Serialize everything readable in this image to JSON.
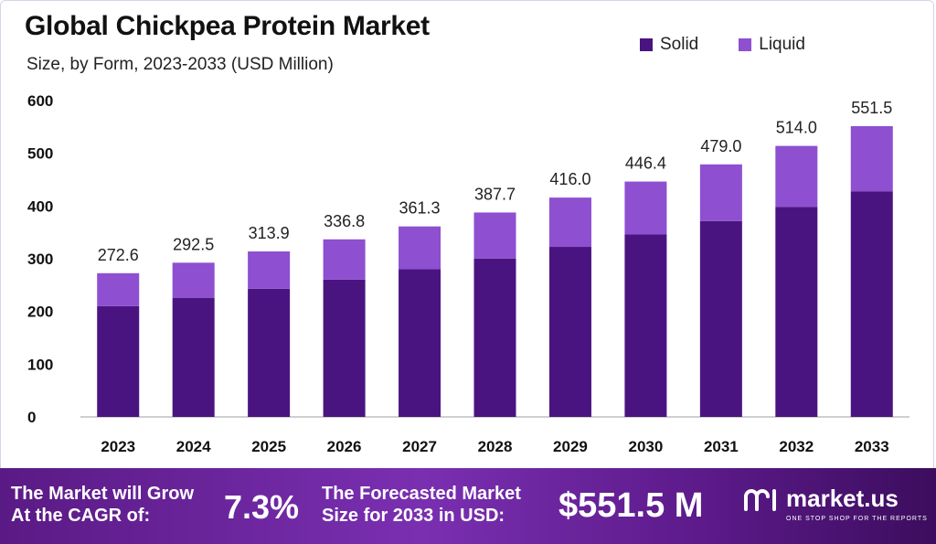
{
  "title": "Global Chickpea Protein Market",
  "subtitle": "Size, by Form, 2023-2033 (USD Million)",
  "colors": {
    "solid": "#4a1480",
    "liquid": "#8e4fd0",
    "axis": "#bfbfbf"
  },
  "chart_data": {
    "type": "bar",
    "stacked": true,
    "categories": [
      "2023",
      "2024",
      "2025",
      "2026",
      "2027",
      "2028",
      "2029",
      "2030",
      "2031",
      "2032",
      "2033"
    ],
    "series": [
      {
        "name": "Solid",
        "values": [
          210.0,
          226.0,
          243.0,
          260.5,
          280.0,
          300.5,
          322.5,
          346.0,
          371.5,
          398.5,
          428.0
        ]
      },
      {
        "name": "Liquid",
        "values": [
          62.6,
          66.5,
          70.9,
          76.3,
          81.3,
          87.2,
          93.5,
          100.4,
          107.5,
          115.5,
          123.5
        ]
      }
    ],
    "totals": [
      "272.6",
      "292.5",
      "313.9",
      "336.8",
      "361.3",
      "387.7",
      "416.0",
      "446.4",
      "479.0",
      "514.0",
      "551.5"
    ],
    "yticks": [
      "0",
      "100",
      "200",
      "300",
      "400",
      "500",
      "600"
    ],
    "ylim": [
      0,
      600
    ],
    "legend_position": "top-right",
    "grid": false
  },
  "footer": {
    "cagr_line1": "The Market will Grow",
    "cagr_line2": "At the CAGR of:",
    "cagr_value": "7.3%",
    "forecast_line1": "The Forecasted Market",
    "forecast_line2": "Size for 2033 in USD:",
    "forecast_value": "$551.5 M",
    "brand_name": "market.us",
    "brand_tagline": "ONE STOP SHOP FOR THE REPORTS",
    "brand_icon": "market-us-logo-icon"
  }
}
